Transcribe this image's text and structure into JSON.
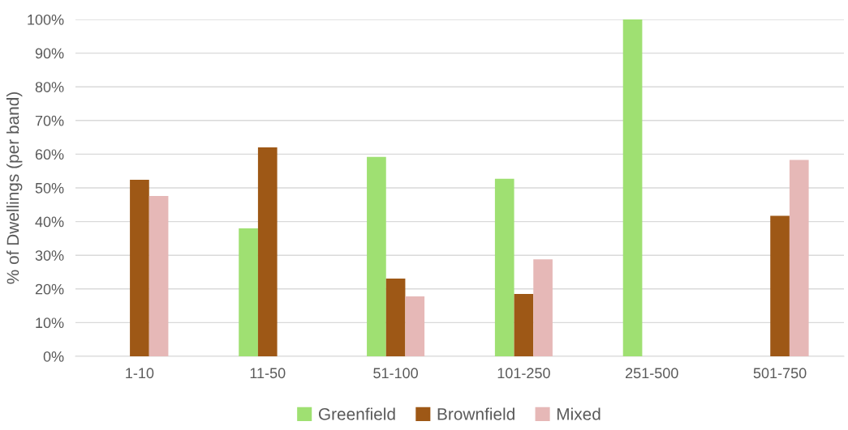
{
  "chart_data": {
    "type": "bar",
    "ylabel": "% of Dwellings (per band)",
    "categories": [
      "1-10",
      "11-50",
      "51-100",
      "101-250",
      "251-500",
      "501-750"
    ],
    "series": [
      {
        "name": "Greenfield",
        "color": "#9fe072",
        "values": [
          0,
          38,
          59.2,
          52.7,
          100,
          0
        ]
      },
      {
        "name": "Brownfield",
        "color": "#9e5816",
        "values": [
          52.4,
          62,
          23.1,
          18.5,
          0,
          41.7
        ]
      },
      {
        "name": "Mixed",
        "color": "#e6b8b7",
        "values": [
          47.6,
          0,
          17.8,
          28.8,
          0,
          58.3
        ]
      }
    ],
    "ylim": [
      0,
      100
    ],
    "yticks": [
      {
        "value": 0,
        "label": "0%"
      },
      {
        "value": 10,
        "label": "10%"
      },
      {
        "value": 20,
        "label": "20%"
      },
      {
        "value": 30,
        "label": "30%"
      },
      {
        "value": 40,
        "label": "40%"
      },
      {
        "value": 50,
        "label": "50%"
      },
      {
        "value": 60,
        "label": "60%"
      },
      {
        "value": 70,
        "label": "70%"
      },
      {
        "value": 80,
        "label": "80%"
      },
      {
        "value": 90,
        "label": "90%"
      },
      {
        "value": 100,
        "label": "100%"
      }
    ],
    "grid": "y",
    "legend": "bottom"
  }
}
